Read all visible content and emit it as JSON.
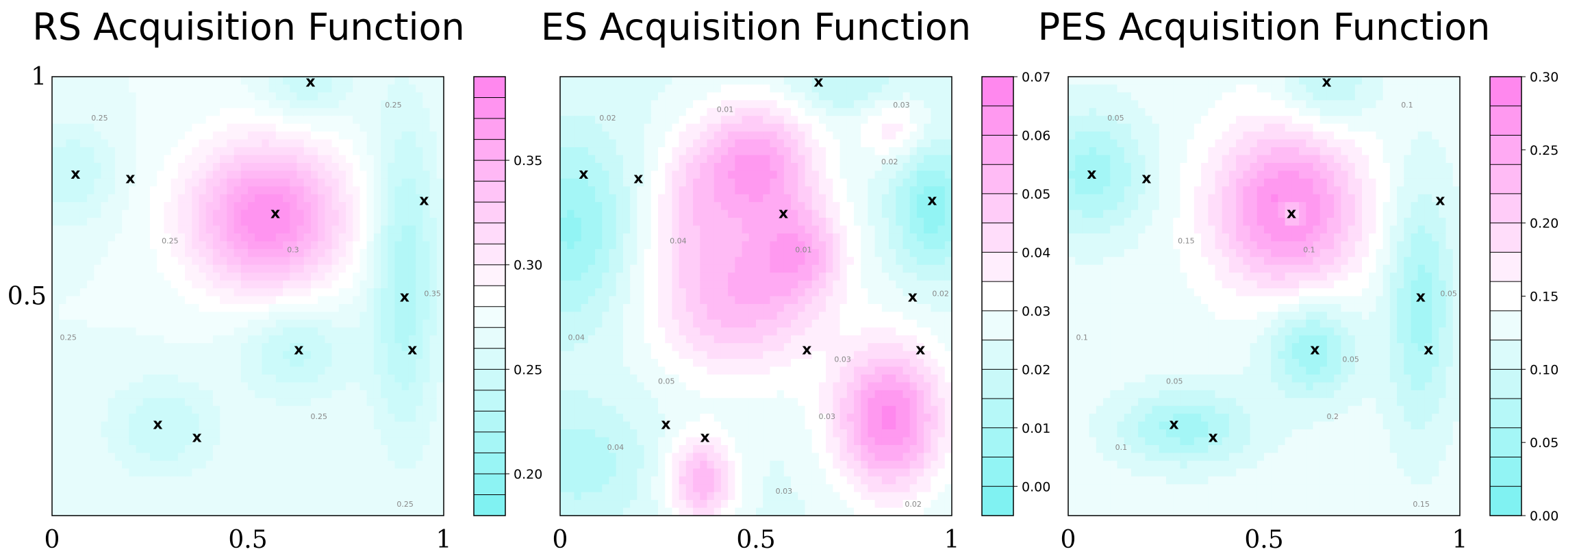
{
  "chart_data": [
    {
      "type": "heatmap",
      "title": "RS Acquisition Function",
      "xlim": [
        0,
        1
      ],
      "ylim": [
        0,
        1
      ],
      "x_ticks": [
        "0",
        "0.5",
        "1"
      ],
      "y_ticks": [
        "1",
        "0.5"
      ],
      "colorbar": {
        "range": [
          0.18,
          0.39
        ],
        "ticks": [
          "0.35",
          "0.30",
          "0.25",
          "0.20"
        ],
        "tick_values": [
          0.35,
          0.3,
          0.25,
          0.2
        ],
        "levels": 21
      },
      "low_color": "#80f2f2",
      "mid_color": "#ffffff",
      "high_color": "#ff88ee",
      "background_value": 0.27,
      "bumps": [
        {
          "x": 0.55,
          "y": 0.68,
          "amp": 0.11,
          "sx": 0.14,
          "sy": 0.12
        },
        {
          "x": 0.9,
          "y": 0.55,
          "amp": -0.05,
          "sx": 0.06,
          "sy": 0.25
        },
        {
          "x": 0.05,
          "y": 0.78,
          "amp": -0.03,
          "sx": 0.08,
          "sy": 0.08
        },
        {
          "x": 0.62,
          "y": 0.38,
          "amp": -0.035,
          "sx": 0.1,
          "sy": 0.08
        },
        {
          "x": 0.28,
          "y": 0.2,
          "amp": -0.03,
          "sx": 0.1,
          "sy": 0.08
        },
        {
          "x": 0.65,
          "y": 0.98,
          "amp": -0.03,
          "sx": 0.08,
          "sy": 0.06
        }
      ],
      "contour_labels": [
        "0.25",
        "0.25",
        "0.25",
        "0.3",
        "0.35",
        "0.25",
        "0.25",
        "0.25"
      ],
      "points": [
        {
          "x": 0.06,
          "y": 0.78
        },
        {
          "x": 0.2,
          "y": 0.77
        },
        {
          "x": 0.57,
          "y": 0.69
        },
        {
          "x": 0.66,
          "y": 0.99
        },
        {
          "x": 0.95,
          "y": 0.72
        },
        {
          "x": 0.9,
          "y": 0.5
        },
        {
          "x": 0.92,
          "y": 0.38
        },
        {
          "x": 0.63,
          "y": 0.38
        },
        {
          "x": 0.27,
          "y": 0.21
        },
        {
          "x": 0.37,
          "y": 0.18
        }
      ]
    },
    {
      "type": "heatmap",
      "title": "ES Acquisition Function",
      "xlim": [
        0,
        1
      ],
      "ylim": [
        0,
        1
      ],
      "x_ticks": [
        "0",
        "0.5",
        "1"
      ],
      "y_ticks": [],
      "colorbar": {
        "range": [
          -0.005,
          0.07
        ],
        "ticks": [
          "0.07",
          "0.06",
          "0.05",
          "0.04",
          "0.03",
          "0.02",
          "0.01",
          "0.00"
        ],
        "tick_values": [
          0.07,
          0.06,
          0.05,
          0.04,
          0.03,
          0.02,
          0.01,
          0.0
        ],
        "levels": 15
      },
      "low_color": "#80f2f2",
      "mid_color": "#ffffff",
      "high_color": "#ff88ee",
      "background_value": 0.024,
      "bumps": [
        {
          "x": 0.5,
          "y": 0.8,
          "amp": 0.036,
          "sx": 0.11,
          "sy": 0.1
        },
        {
          "x": 0.45,
          "y": 0.5,
          "amp": 0.03,
          "sx": 0.15,
          "sy": 0.13
        },
        {
          "x": 0.62,
          "y": 0.6,
          "amp": 0.022,
          "sx": 0.08,
          "sy": 0.08
        },
        {
          "x": 0.33,
          "y": 0.72,
          "amp": 0.012,
          "sx": 0.07,
          "sy": 0.1
        },
        {
          "x": 0.84,
          "y": 0.22,
          "amp": 0.042,
          "sx": 0.1,
          "sy": 0.12
        },
        {
          "x": 0.36,
          "y": 0.08,
          "amp": 0.03,
          "sx": 0.06,
          "sy": 0.07
        },
        {
          "x": 0.85,
          "y": 0.88,
          "amp": 0.014,
          "sx": 0.06,
          "sy": 0.05
        },
        {
          "x": 0.03,
          "y": 0.65,
          "amp": -0.02,
          "sx": 0.1,
          "sy": 0.15
        },
        {
          "x": 0.95,
          "y": 0.7,
          "amp": -0.022,
          "sx": 0.07,
          "sy": 0.1
        },
        {
          "x": 0.05,
          "y": 0.12,
          "amp": -0.012,
          "sx": 0.12,
          "sy": 0.1
        },
        {
          "x": 0.72,
          "y": 0.98,
          "amp": -0.01,
          "sx": 0.1,
          "sy": 0.05
        }
      ],
      "contour_labels": [
        "0.02",
        "0.03",
        "0.04",
        "0.01",
        "0.02",
        "0.04",
        "0.03",
        "0.02",
        "0.05",
        "0.04",
        "0.03",
        "0.01",
        "0.03",
        "0.02"
      ],
      "points": [
        {
          "x": 0.06,
          "y": 0.78
        },
        {
          "x": 0.2,
          "y": 0.77
        },
        {
          "x": 0.57,
          "y": 0.69
        },
        {
          "x": 0.66,
          "y": 0.99
        },
        {
          "x": 0.95,
          "y": 0.72
        },
        {
          "x": 0.9,
          "y": 0.5
        },
        {
          "x": 0.92,
          "y": 0.38
        },
        {
          "x": 0.63,
          "y": 0.38
        },
        {
          "x": 0.27,
          "y": 0.21
        },
        {
          "x": 0.37,
          "y": 0.18
        }
      ]
    },
    {
      "type": "heatmap",
      "title": "PES Acquisition Function",
      "xlim": [
        0,
        1
      ],
      "ylim": [
        0,
        1
      ],
      "x_ticks": [
        "0",
        "0.5",
        "1"
      ],
      "y_ticks": [],
      "colorbar": {
        "range": [
          0.0,
          0.3
        ],
        "ticks": [
          "0.30",
          "0.25",
          "0.20",
          "0.15",
          "0.10",
          "0.05",
          "0.00"
        ],
        "tick_values": [
          0.3,
          0.25,
          0.2,
          0.15,
          0.1,
          0.05,
          0.0
        ],
        "levels": 15
      },
      "low_color": "#80f2f2",
      "mid_color": "#ffffff",
      "high_color": "#ff88ee",
      "background_value": 0.13,
      "bumps": [
        {
          "x": 0.56,
          "y": 0.7,
          "amp": 0.16,
          "sx": 0.13,
          "sy": 0.13
        },
        {
          "x": 0.57,
          "y": 0.69,
          "amp": -0.09,
          "sx": 0.02,
          "sy": 0.02
        },
        {
          "x": 0.06,
          "y": 0.78,
          "amp": -0.08,
          "sx": 0.1,
          "sy": 0.1
        },
        {
          "x": 0.62,
          "y": 0.38,
          "amp": -0.09,
          "sx": 0.08,
          "sy": 0.08
        },
        {
          "x": 0.9,
          "y": 0.48,
          "amp": -0.08,
          "sx": 0.06,
          "sy": 0.2
        },
        {
          "x": 0.3,
          "y": 0.2,
          "amp": -0.08,
          "sx": 0.12,
          "sy": 0.06
        },
        {
          "x": 0.66,
          "y": 0.98,
          "amp": -0.06,
          "sx": 0.08,
          "sy": 0.07
        }
      ],
      "contour_labels": [
        "0.05",
        "0.1",
        "0.15",
        "0.1",
        "0.05",
        "0.1",
        "0.2",
        "0.15",
        "0.05",
        "0.1",
        "0.05"
      ],
      "points": [
        {
          "x": 0.06,
          "y": 0.78
        },
        {
          "x": 0.2,
          "y": 0.77
        },
        {
          "x": 0.57,
          "y": 0.69
        },
        {
          "x": 0.66,
          "y": 0.99
        },
        {
          "x": 0.95,
          "y": 0.72
        },
        {
          "x": 0.9,
          "y": 0.5
        },
        {
          "x": 0.92,
          "y": 0.38
        },
        {
          "x": 0.63,
          "y": 0.38
        },
        {
          "x": 0.27,
          "y": 0.21
        },
        {
          "x": 0.37,
          "y": 0.18
        }
      ]
    }
  ],
  "marker_symbol": "x",
  "colors": {
    "frame": "#000000",
    "contour": "#a9a9a9",
    "grid_line": "#000000"
  }
}
